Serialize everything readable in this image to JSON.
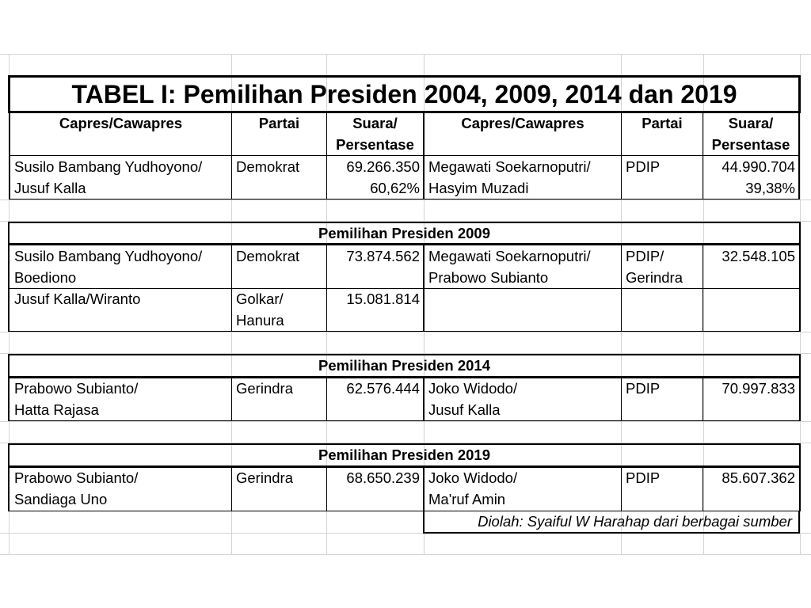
{
  "title": "TABEL I: Pemilihan Presiden 2004, 2009, 2014 dan 2019",
  "header": {
    "capres": "Capres/Cawapres",
    "partai": "Partai",
    "suara1": "Suara/",
    "suara2": "Persentase"
  },
  "e2004": {
    "left": {
      "name1": "Susilo Bambang Yudhoyono/",
      "name2": "Jusuf Kalla",
      "party": "Demokrat",
      "votes": "69.266.350",
      "pct": "60,62%"
    },
    "right": {
      "name1": "Megawati Soekarnoputri/",
      "name2": "Hasyim Muzadi",
      "party": "PDIP",
      "votes": "44.990.704",
      "pct": "39,38%"
    }
  },
  "e2009": {
    "heading": "Pemilihan Presiden 2009",
    "left": [
      {
        "name1": "Susilo Bambang Yudhoyono/",
        "name2": "Boediono",
        "party1": "Demokrat",
        "party2": "",
        "votes": "73.874.562"
      },
      {
        "name1": "Jusuf Kalla/Wiranto",
        "name2": "",
        "party1": "Golkar/",
        "party2": "Hanura",
        "votes": "15.081.814"
      }
    ],
    "right": {
      "name1": "Megawati Soekarnoputri/",
      "name2": "Prabowo Subianto",
      "party1": "PDIP/",
      "party2": "Gerindra",
      "votes": "32.548.105"
    }
  },
  "e2014": {
    "heading": "Pemilihan Presiden 2014",
    "left": {
      "name1": "Prabowo Subianto/",
      "name2": "Hatta Rajasa",
      "party": "Gerindra",
      "votes": "62.576.444"
    },
    "right": {
      "name1": "Joko Widodo/",
      "name2": "Jusuf Kalla",
      "party": "PDIP",
      "votes": "70.997.833"
    }
  },
  "e2019": {
    "heading": "Pemilihan Presiden 2019",
    "left": {
      "name1": "Prabowo Subianto/",
      "name2": "Sandiaga Uno",
      "party": "Gerindra",
      "votes": "68.650.239"
    },
    "right": {
      "name1": "Joko Widodo/",
      "name2": "Ma'ruf Amin",
      "party": "PDIP",
      "votes": "85.607.362"
    }
  },
  "note": "Diolah: Syaiful W Harahap dari berbagai sumber"
}
